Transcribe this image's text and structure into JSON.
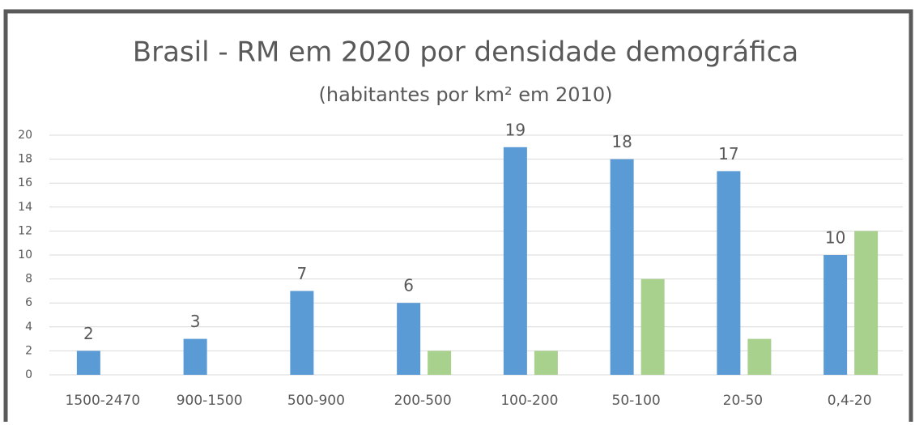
{
  "chart_data": {
    "type": "bar",
    "title": "Brasil - RM em 2020 por densidade demográfica",
    "subtitle": "(habitantes por km² em 2010)",
    "categories": [
      "1500-2470",
      "900-1500",
      "500-900",
      "200-500",
      "100-200",
      "50-100",
      "20-50",
      "0,4-20"
    ],
    "series": [
      {
        "color": "#5b9bd5",
        "values": [
          2,
          3,
          7,
          6,
          19,
          18,
          17,
          10
        ],
        "data_labels": true
      },
      {
        "color": "#a9d18e",
        "values": [
          null,
          null,
          null,
          2,
          2,
          8,
          3,
          12
        ],
        "data_labels": false
      }
    ],
    "ylim": [
      0,
      20
    ],
    "yticks": [
      0,
      2,
      4,
      6,
      8,
      10,
      12,
      14,
      16,
      18,
      20
    ],
    "grid": true
  }
}
